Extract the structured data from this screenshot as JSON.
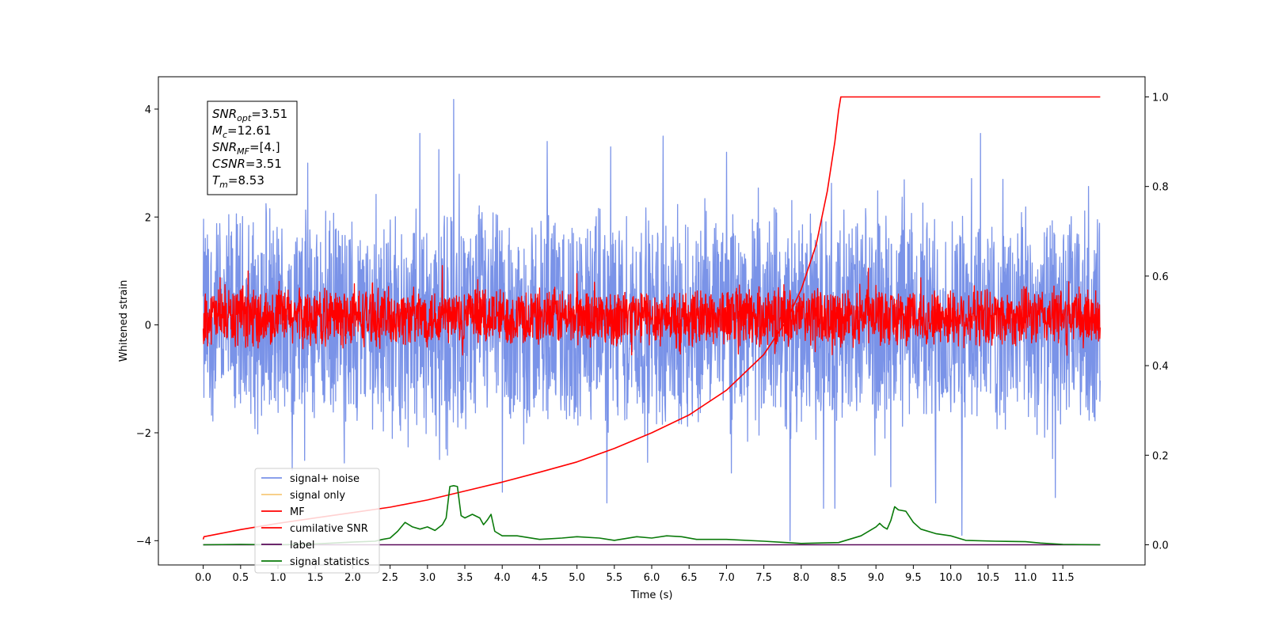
{
  "chart_data": {
    "type": "line",
    "title": "",
    "xlabel": "Time (s)",
    "ylabel": "Whitened strain",
    "xlim": [
      -0.6,
      12.6
    ],
    "ylim": [
      -4.45,
      4.6
    ],
    "y2lim": [
      -0.045,
      1.045
    ],
    "x_ticks": [
      0.0,
      0.5,
      1.0,
      1.5,
      2.0,
      2.5,
      3.0,
      3.5,
      4.0,
      4.5,
      5.0,
      5.5,
      6.0,
      6.5,
      7.0,
      7.5,
      8.0,
      8.5,
      9.0,
      9.5,
      10.0,
      10.5,
      11.0,
      11.5
    ],
    "x_tick_labels": [
      "0.0",
      "0.5",
      "1.0",
      "1.5",
      "2.0",
      "2.5",
      "3.0",
      "3.5",
      "4.0",
      "4.5",
      "5.0",
      "5.5",
      "6.0",
      "6.5",
      "7.0",
      "7.5",
      "8.0",
      "8.5",
      "9.0",
      "9.5",
      "10.0",
      "10.5",
      "11.0",
      "11.5"
    ],
    "y_ticks": [
      4,
      2,
      0,
      -2,
      -4
    ],
    "y_tick_labels": [
      "4",
      "2",
      "0",
      "−2",
      "−4"
    ],
    "y2_ticks": [
      1.0,
      0.8,
      0.6,
      0.4,
      0.2,
      0.0
    ],
    "y2_tick_labels": [
      "1.0",
      "0.8",
      "0.6",
      "0.4",
      "0.2",
      "0.0"
    ],
    "grid": false,
    "legend_position": "lower-left",
    "legend": [
      {
        "label": "signal+ noise",
        "color": "#7a93e8"
      },
      {
        "label": "signal only",
        "color": "#f7c97a"
      },
      {
        "label": "MF",
        "color": "#ff0000"
      },
      {
        "label": "cumilative SNR",
        "color": "#ff0000"
      },
      {
        "label": "label",
        "color": "#5a0a5a"
      },
      {
        "label": "signal statistics",
        "color": "#0a7a0a"
      }
    ],
    "annotation": [
      {
        "base": "SNR",
        "sub": "opt",
        "value": "=3.51"
      },
      {
        "base": "M",
        "sub": "c",
        "value": "=12.61"
      },
      {
        "base": "SNR",
        "sub": "MF",
        "value": "=[4.]"
      },
      {
        "base": "CSNR",
        "sub": "",
        "value": "=3.51"
      },
      {
        "base": "T",
        "sub": "m",
        "value": "=8.53"
      }
    ],
    "series": [
      {
        "name": "signal+ noise",
        "axis": "left",
        "color": "#7a93e8",
        "x_range": [
          0.0,
          12.0
        ],
        "envelope": [
          -2.2,
          2.3
        ],
        "peaks": [
          {
            "x": 3.35,
            "y": 4.18
          },
          {
            "x": 2.9,
            "y": 3.55
          },
          {
            "x": 3.15,
            "y": 3.25
          },
          {
            "x": 4.6,
            "y": 3.4
          },
          {
            "x": 5.45,
            "y": 3.3
          },
          {
            "x": 6.15,
            "y": 3.5
          },
          {
            "x": 7.0,
            "y": 3.2
          },
          {
            "x": 10.4,
            "y": 3.55
          },
          {
            "x": 1.4,
            "y": 3.0
          },
          {
            "x": 7.85,
            "y": -4.0
          },
          {
            "x": 10.15,
            "y": -3.9
          },
          {
            "x": 5.4,
            "y": -3.3
          },
          {
            "x": 4.0,
            "y": -3.1
          },
          {
            "x": 8.3,
            "y": -3.4
          },
          {
            "x": 8.45,
            "y": -3.4
          },
          {
            "x": 11.4,
            "y": -3.2
          },
          {
            "x": 9.8,
            "y": -3.3
          },
          {
            "x": 9.2,
            "y": -3.0
          }
        ]
      },
      {
        "name": "MF",
        "axis": "left",
        "color": "#ff0000",
        "x_range": [
          0.0,
          12.0
        ],
        "envelope": [
          -0.45,
          0.75
        ],
        "peaks": [
          {
            "x": 0.6,
            "y": 1.0
          },
          {
            "x": 3.2,
            "y": 1.1
          },
          {
            "x": 5.0,
            "y": 0.95
          },
          {
            "x": 8.9,
            "y": 1.05
          }
        ]
      },
      {
        "name": "cumilative SNR",
        "axis": "right",
        "color": "#ff0000",
        "points": [
          [
            0.0,
            0.012
          ],
          [
            0.01,
            0.018
          ],
          [
            0.5,
            0.034
          ],
          [
            1.0,
            0.048
          ],
          [
            1.5,
            0.06
          ],
          [
            2.0,
            0.072
          ],
          [
            2.5,
            0.084
          ],
          [
            3.0,
            0.1
          ],
          [
            3.5,
            0.12
          ],
          [
            4.0,
            0.14
          ],
          [
            4.5,
            0.162
          ],
          [
            5.0,
            0.185
          ],
          [
            5.5,
            0.215
          ],
          [
            6.0,
            0.25
          ],
          [
            6.5,
            0.29
          ],
          [
            7.0,
            0.345
          ],
          [
            7.5,
            0.425
          ],
          [
            7.8,
            0.5
          ],
          [
            8.0,
            0.57
          ],
          [
            8.2,
            0.67
          ],
          [
            8.35,
            0.79
          ],
          [
            8.45,
            0.9
          ],
          [
            8.5,
            0.97
          ],
          [
            8.53,
            1.0
          ],
          [
            12.0,
            1.0
          ]
        ]
      },
      {
        "name": "label",
        "axis": "right",
        "color": "#5a0a5a",
        "points": [
          [
            0.0,
            0.0
          ],
          [
            12.0,
            0.0
          ]
        ]
      },
      {
        "name": "signal statistics",
        "axis": "right",
        "color": "#0a7a0a",
        "points": [
          [
            0.0,
            0.0
          ],
          [
            0.5,
            0.001
          ],
          [
            1.0,
            0.0
          ],
          [
            1.5,
            0.002
          ],
          [
            2.0,
            0.006
          ],
          [
            2.3,
            0.008
          ],
          [
            2.4,
            0.012
          ],
          [
            2.5,
            0.015
          ],
          [
            2.6,
            0.03
          ],
          [
            2.7,
            0.05
          ],
          [
            2.8,
            0.04
          ],
          [
            2.9,
            0.035
          ],
          [
            3.0,
            0.04
          ],
          [
            3.1,
            0.032
          ],
          [
            3.2,
            0.045
          ],
          [
            3.25,
            0.06
          ],
          [
            3.3,
            0.13
          ],
          [
            3.35,
            0.132
          ],
          [
            3.4,
            0.13
          ],
          [
            3.45,
            0.065
          ],
          [
            3.5,
            0.06
          ],
          [
            3.6,
            0.068
          ],
          [
            3.7,
            0.06
          ],
          [
            3.75,
            0.045
          ],
          [
            3.8,
            0.055
          ],
          [
            3.85,
            0.068
          ],
          [
            3.9,
            0.03
          ],
          [
            4.0,
            0.02
          ],
          [
            4.2,
            0.02
          ],
          [
            4.5,
            0.012
          ],
          [
            4.8,
            0.015
          ],
          [
            5.0,
            0.018
          ],
          [
            5.3,
            0.015
          ],
          [
            5.5,
            0.01
          ],
          [
            5.8,
            0.018
          ],
          [
            6.0,
            0.015
          ],
          [
            6.2,
            0.02
          ],
          [
            6.4,
            0.018
          ],
          [
            6.6,
            0.012
          ],
          [
            7.0,
            0.012
          ],
          [
            7.5,
            0.008
          ],
          [
            7.8,
            0.005
          ],
          [
            8.0,
            0.003
          ],
          [
            8.5,
            0.005
          ],
          [
            8.8,
            0.02
          ],
          [
            9.0,
            0.04
          ],
          [
            9.05,
            0.048
          ],
          [
            9.1,
            0.04
          ],
          [
            9.15,
            0.035
          ],
          [
            9.2,
            0.055
          ],
          [
            9.25,
            0.085
          ],
          [
            9.3,
            0.078
          ],
          [
            9.4,
            0.075
          ],
          [
            9.5,
            0.05
          ],
          [
            9.6,
            0.035
          ],
          [
            9.8,
            0.025
          ],
          [
            10.0,
            0.02
          ],
          [
            10.2,
            0.01
          ],
          [
            10.6,
            0.008
          ],
          [
            11.0,
            0.007
          ],
          [
            11.2,
            0.004
          ],
          [
            11.5,
            0.001
          ],
          [
            12.0,
            0.0
          ]
        ]
      }
    ]
  }
}
